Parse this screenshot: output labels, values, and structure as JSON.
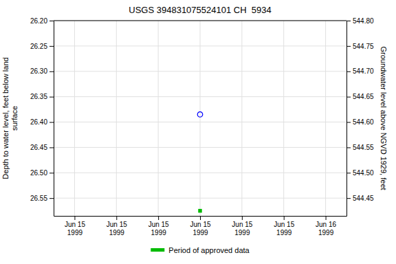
{
  "chart_data": {
    "type": "scatter",
    "title": "USGS 394831075524101 CH  5934",
    "ylabel": "Depth to water level, feet below land\n surface",
    "y2label": "Groundwater level above NGVD 1929, feet",
    "categories": [
      "Jun 15\n1999",
      "Jun 15\n1999",
      "Jun 15\n1999",
      "Jun 15\n1999",
      "Jun 15\n1999",
      "Jun 15\n1999",
      "Jun 16\n1999"
    ],
    "series": [
      {
        "color": "blue",
        "marker": "open-circle",
        "values": [
          null,
          null,
          null,
          26.385,
          null,
          null,
          null
        ]
      },
      {
        "name": "Period of approved data",
        "color": "#00bb00",
        "marker": "square",
        "values": [
          null,
          null,
          null,
          26.575,
          null,
          null,
          null
        ]
      }
    ],
    "ylim": [
      26.585,
      26.2
    ],
    "yticks": [
      {
        "value": 26.2,
        "label": "26.20"
      },
      26.25,
      {
        "value": 26.3,
        "label": "26.30"
      },
      26.35,
      {
        "value": 26.4,
        "label": "26.40"
      },
      26.45,
      {
        "value": 26.5,
        "label": "26.50"
      },
      26.55
    ],
    "y2lim": [
      544.415,
      544.8
    ],
    "y2ticks": [
      {
        "value": 544.8,
        "label": "544.80"
      },
      544.75,
      {
        "value": 544.7,
        "label": "544.70"
      },
      544.65,
      {
        "value": 544.6,
        "label": "544.60"
      },
      544.55,
      {
        "value": 544.5,
        "label": "544.50"
      },
      544.45
    ],
    "grid": true,
    "legend": "bottom"
  }
}
